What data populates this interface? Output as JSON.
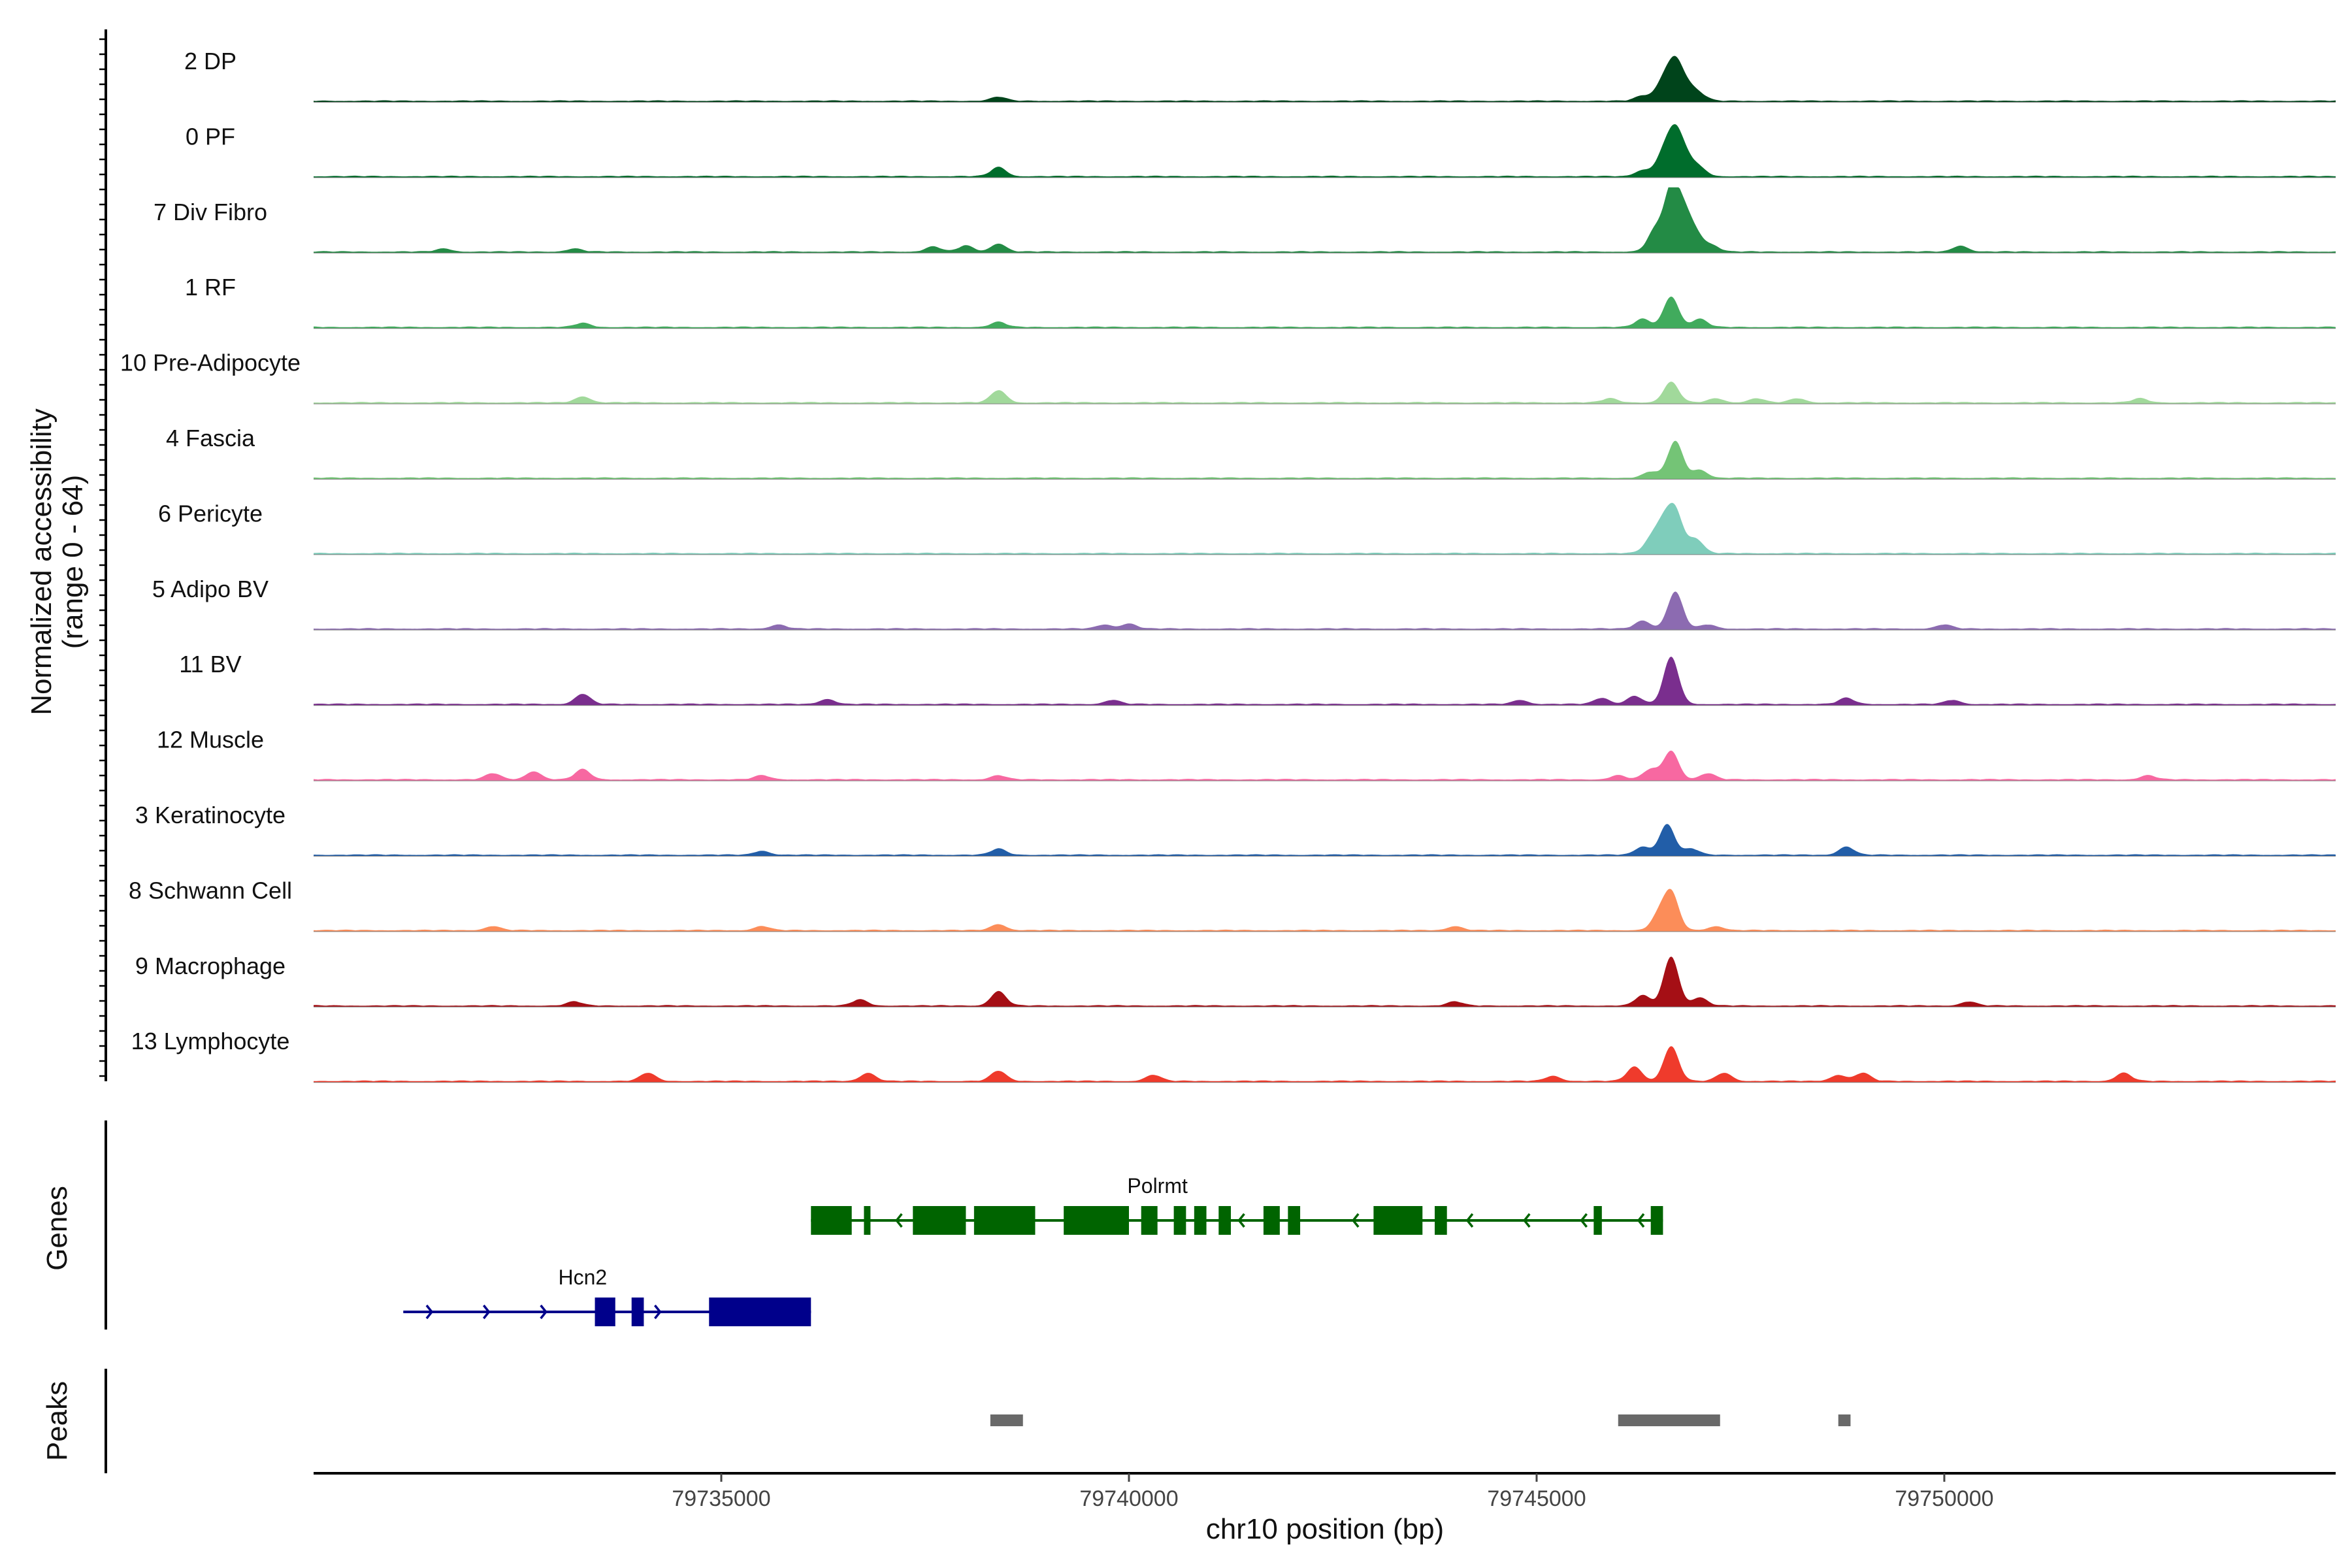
{
  "chart_data": {
    "type": "area",
    "ylabel_line1": "Normalized accessibility",
    "ylabel_line2": "(range 0 - 64)",
    "xlabel": "chr10 position (bp)",
    "xlim": [
      79730000,
      79754800
    ],
    "ylim": [
      0,
      64
    ],
    "x_ticks": [
      79735000,
      79740000,
      79745000,
      79750000
    ],
    "x_tick_labels": [
      "79735000",
      "79740000",
      "79745000",
      "79750000"
    ],
    "coverage_tracks": [
      {
        "label": "2 DP",
        "color": "#00441b",
        "peaks": [
          [
            79738400,
            4
          ],
          [
            79746300,
            5
          ],
          [
            79746550,
            18
          ],
          [
            79746700,
            36
          ],
          [
            79746850,
            12
          ],
          [
            79747000,
            6
          ]
        ]
      },
      {
        "label": "0 PF",
        "color": "#006d2c",
        "peaks": [
          [
            79738400,
            9
          ],
          [
            79746300,
            6
          ],
          [
            79746550,
            20
          ],
          [
            79746700,
            42
          ],
          [
            79746850,
            14
          ],
          [
            79747000,
            7
          ]
        ]
      },
      {
        "label": "7 Div Fibro",
        "color": "#238b45",
        "peaks": [
          [
            79731600,
            3
          ],
          [
            79733200,
            3
          ],
          [
            79737600,
            5
          ],
          [
            79738000,
            6
          ],
          [
            79738400,
            8
          ],
          [
            79746450,
            20
          ],
          [
            79746650,
            58
          ],
          [
            79746800,
            34
          ],
          [
            79746950,
            16
          ],
          [
            79747150,
            6
          ],
          [
            79750200,
            6
          ]
        ]
      },
      {
        "label": "1 RF",
        "color": "#41ab5d",
        "peaks": [
          [
            79733300,
            4
          ],
          [
            79738400,
            5
          ],
          [
            79746300,
            8
          ],
          [
            79746650,
            30
          ],
          [
            79747000,
            8
          ]
        ]
      },
      {
        "label": "10 Pre-Adipocyte",
        "color": "#a1d99b",
        "peaks": [
          [
            79733300,
            6
          ],
          [
            79738400,
            12
          ],
          [
            79745900,
            4
          ],
          [
            79746650,
            20
          ],
          [
            79747200,
            4
          ],
          [
            79747700,
            4
          ],
          [
            79748200,
            4
          ],
          [
            79752400,
            4
          ]
        ]
      },
      {
        "label": "4 Fascia",
        "color": "#74c476",
        "peaks": [
          [
            79746400,
            6
          ],
          [
            79746700,
            36
          ],
          [
            79747000,
            8
          ]
        ]
      },
      {
        "label": "6 Pericyte",
        "color": "#7fcdbb",
        "peaks": [
          [
            79746400,
            12
          ],
          [
            79746550,
            26
          ],
          [
            79746700,
            40
          ],
          [
            79746950,
            14
          ]
        ]
      },
      {
        "label": "5 Adipo BV",
        "color": "#8c6bb1",
        "peaks": [
          [
            79735700,
            4
          ],
          [
            79739700,
            4
          ],
          [
            79740000,
            5
          ],
          [
            79746300,
            8
          ],
          [
            79746700,
            36
          ],
          [
            79747100,
            4
          ],
          [
            79750000,
            4
          ]
        ]
      },
      {
        "label": "11 BV",
        "color": "#7a2e8e",
        "peaks": [
          [
            79733300,
            10
          ],
          [
            79736300,
            5
          ],
          [
            79739800,
            4
          ],
          [
            79744800,
            4
          ],
          [
            79745800,
            6
          ],
          [
            79746200,
            8
          ],
          [
            79746650,
            46
          ],
          [
            79748800,
            6
          ],
          [
            79750100,
            4
          ]
        ]
      },
      {
        "label": "12 Muscle",
        "color": "#f768a1",
        "peaks": [
          [
            79732200,
            6
          ],
          [
            79732700,
            8
          ],
          [
            79733300,
            10
          ],
          [
            79735500,
            4
          ],
          [
            79738400,
            4
          ],
          [
            79746000,
            4
          ],
          [
            79746400,
            10
          ],
          [
            79746650,
            28
          ],
          [
            79747100,
            6
          ],
          [
            79752500,
            4
          ]
        ]
      },
      {
        "label": "3 Keratinocyte",
        "color": "#225ea8",
        "peaks": [
          [
            79735500,
            4
          ],
          [
            79738400,
            6
          ],
          [
            79746300,
            8
          ],
          [
            79746600,
            30
          ],
          [
            79746900,
            6
          ],
          [
            79748800,
            8
          ]
        ]
      },
      {
        "label": "8 Schwann Cell",
        "color": "#fc8d59",
        "peaks": [
          [
            79732200,
            4
          ],
          [
            79735500,
            4
          ],
          [
            79738400,
            6
          ],
          [
            79744000,
            4
          ],
          [
            79746500,
            14
          ],
          [
            79746650,
            36
          ],
          [
            79747200,
            4
          ]
        ]
      },
      {
        "label": "9 Macrophage",
        "color": "#a50f15",
        "peaks": [
          [
            79733200,
            4
          ],
          [
            79736700,
            6
          ],
          [
            79738400,
            14
          ],
          [
            79744000,
            4
          ],
          [
            79746300,
            10
          ],
          [
            79746650,
            48
          ],
          [
            79747000,
            8
          ],
          [
            79750300,
            4
          ]
        ]
      },
      {
        "label": "13 Lymphocyte",
        "color": "#ef3b2c",
        "peaks": [
          [
            79734100,
            8
          ],
          [
            79736800,
            8
          ],
          [
            79738400,
            10
          ],
          [
            79740300,
            6
          ],
          [
            79745200,
            5
          ],
          [
            79746200,
            14
          ],
          [
            79746650,
            34
          ],
          [
            79747300,
            8
          ],
          [
            79748700,
            6
          ],
          [
            79749000,
            8
          ],
          [
            79752200,
            8
          ]
        ]
      }
    ],
    "genes_label": "Genes",
    "genes": [
      {
        "name": "Polrmt",
        "color": "#006400",
        "strand": "-",
        "start": 79736100,
        "end": 79746550,
        "exons": [
          [
            79736100,
            79736600
          ],
          [
            79736750,
            79736830
          ],
          [
            79737350,
            79738000
          ],
          [
            79738100,
            79738850
          ],
          [
            79739200,
            79740000
          ],
          [
            79740150,
            79740350
          ],
          [
            79740550,
            79740700
          ],
          [
            79740800,
            79740950
          ],
          [
            79741100,
            79741250
          ],
          [
            79741650,
            79741850
          ],
          [
            79741950,
            79742100
          ],
          [
            79743000,
            79743600
          ],
          [
            79743750,
            79743900
          ],
          [
            79745700,
            79745800
          ],
          [
            79746400,
            79746550
          ]
        ]
      },
      {
        "name": "Hcn2",
        "color": "#00008b",
        "strand": "+",
        "start": 79731100,
        "end": 79736100,
        "exons": [
          [
            79733450,
            79733700
          ],
          [
            79733900,
            79734050
          ],
          [
            79734850,
            79736100
          ]
        ]
      }
    ],
    "peaks_label": "Peaks",
    "peaks_color": "#696969",
    "peak_regions": [
      [
        79738300,
        79738700
      ],
      [
        79746000,
        79747250
      ],
      [
        79748700,
        79748850
      ]
    ]
  }
}
